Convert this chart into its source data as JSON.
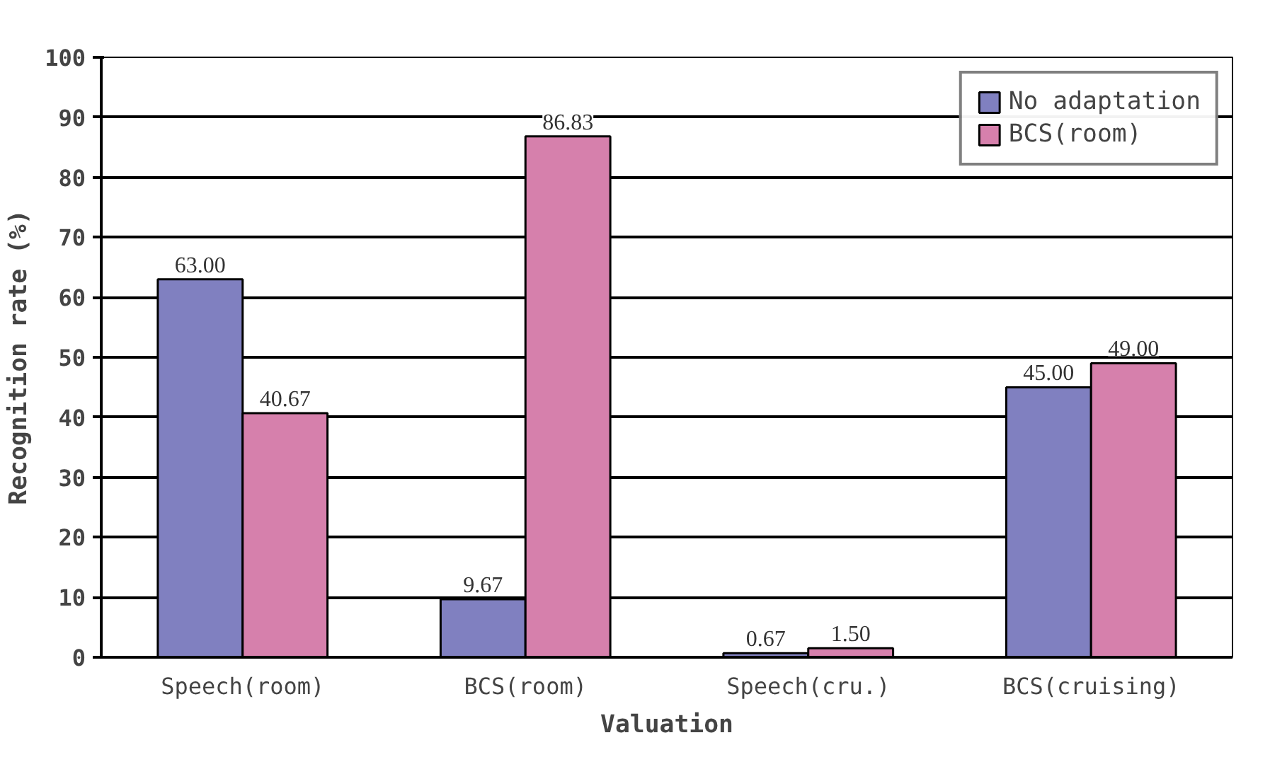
{
  "chart_data": {
    "type": "bar",
    "xlabel": "Valuation",
    "ylabel": "Recognition rate (%)",
    "categories": [
      "Speech(room)",
      "BCS(room)",
      "Speech(cru.)",
      "BCS(cruising)"
    ],
    "series": [
      {
        "name": "No adaptation",
        "color": "#8080c0",
        "values": [
          63.0,
          9.67,
          0.67,
          45.0
        ],
        "value_labels": [
          "63.00",
          "9.67",
          "0.67",
          "45.00"
        ]
      },
      {
        "name": "BCS(room)",
        "color": "#d680ac",
        "values": [
          40.67,
          86.83,
          1.5,
          49.0
        ],
        "value_labels": [
          "40.67",
          "86.83",
          "1.50",
          "49.00"
        ]
      }
    ],
    "ylim": [
      0,
      100
    ],
    "yticks": [
      0,
      10,
      20,
      30,
      40,
      50,
      60,
      70,
      80,
      90,
      100
    ],
    "grid": "y",
    "legend": "top right"
  }
}
